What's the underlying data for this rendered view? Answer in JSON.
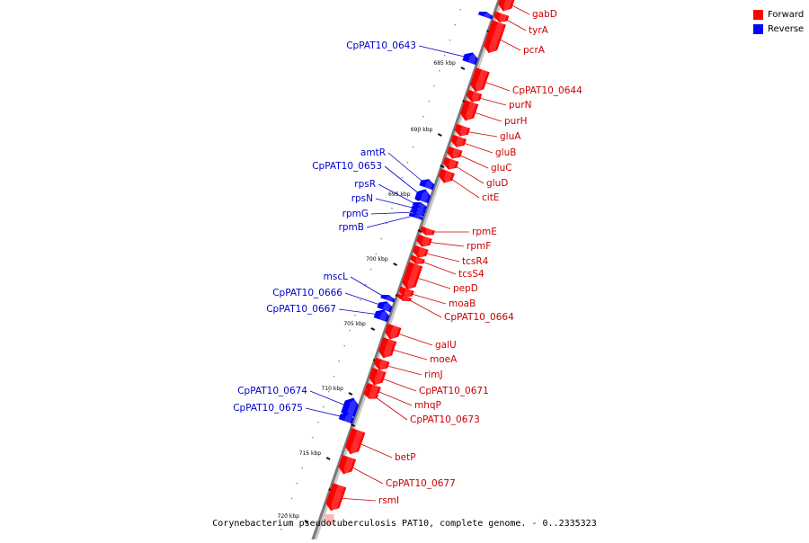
{
  "colors": {
    "forward": "#ff0000",
    "reverse": "#0000ff",
    "backbone": "#808080",
    "text_forward": "#cc0000",
    "text_reverse": "#0000cc"
  },
  "legend": {
    "forward_label": "Forward",
    "reverse_label": "Reverse"
  },
  "caption": "Corynebacterium pseudotuberculosis PAT10, complete genome. - 0..2335323",
  "tick_labels": [
    "685 kbp",
    "690 kbp",
    "695 kbp",
    "700 kbp",
    "705 kbp",
    "710 kbp",
    "715 kbp",
    "720 kbp"
  ],
  "genes_forward": [
    "gabD",
    "tyrA",
    "pcrA",
    "CpPAT10_0644",
    "purN",
    "purH",
    "gluA",
    "gluB",
    "gluC",
    "gluD",
    "citE",
    "rpmE",
    "rpmF",
    "tcsR4",
    "tcsS4",
    "pepD",
    "moaB",
    "CpPAT10_0664",
    "galU",
    "moeA",
    "rimJ",
    "CpPAT10_0671",
    "mhqP",
    "CpPAT10_0673",
    "betP",
    "CpPAT10_0677",
    "rsmI"
  ],
  "genes_reverse": [
    "CpPAT10_0643",
    "amtR",
    "CpPAT10_0653",
    "rpsR",
    "rpsN",
    "rpmG",
    "rpmB",
    "mscL",
    "CpPAT10_0666",
    "CpPAT10_0667",
    "CpPAT10_0674",
    "CpPAT10_0675"
  ]
}
